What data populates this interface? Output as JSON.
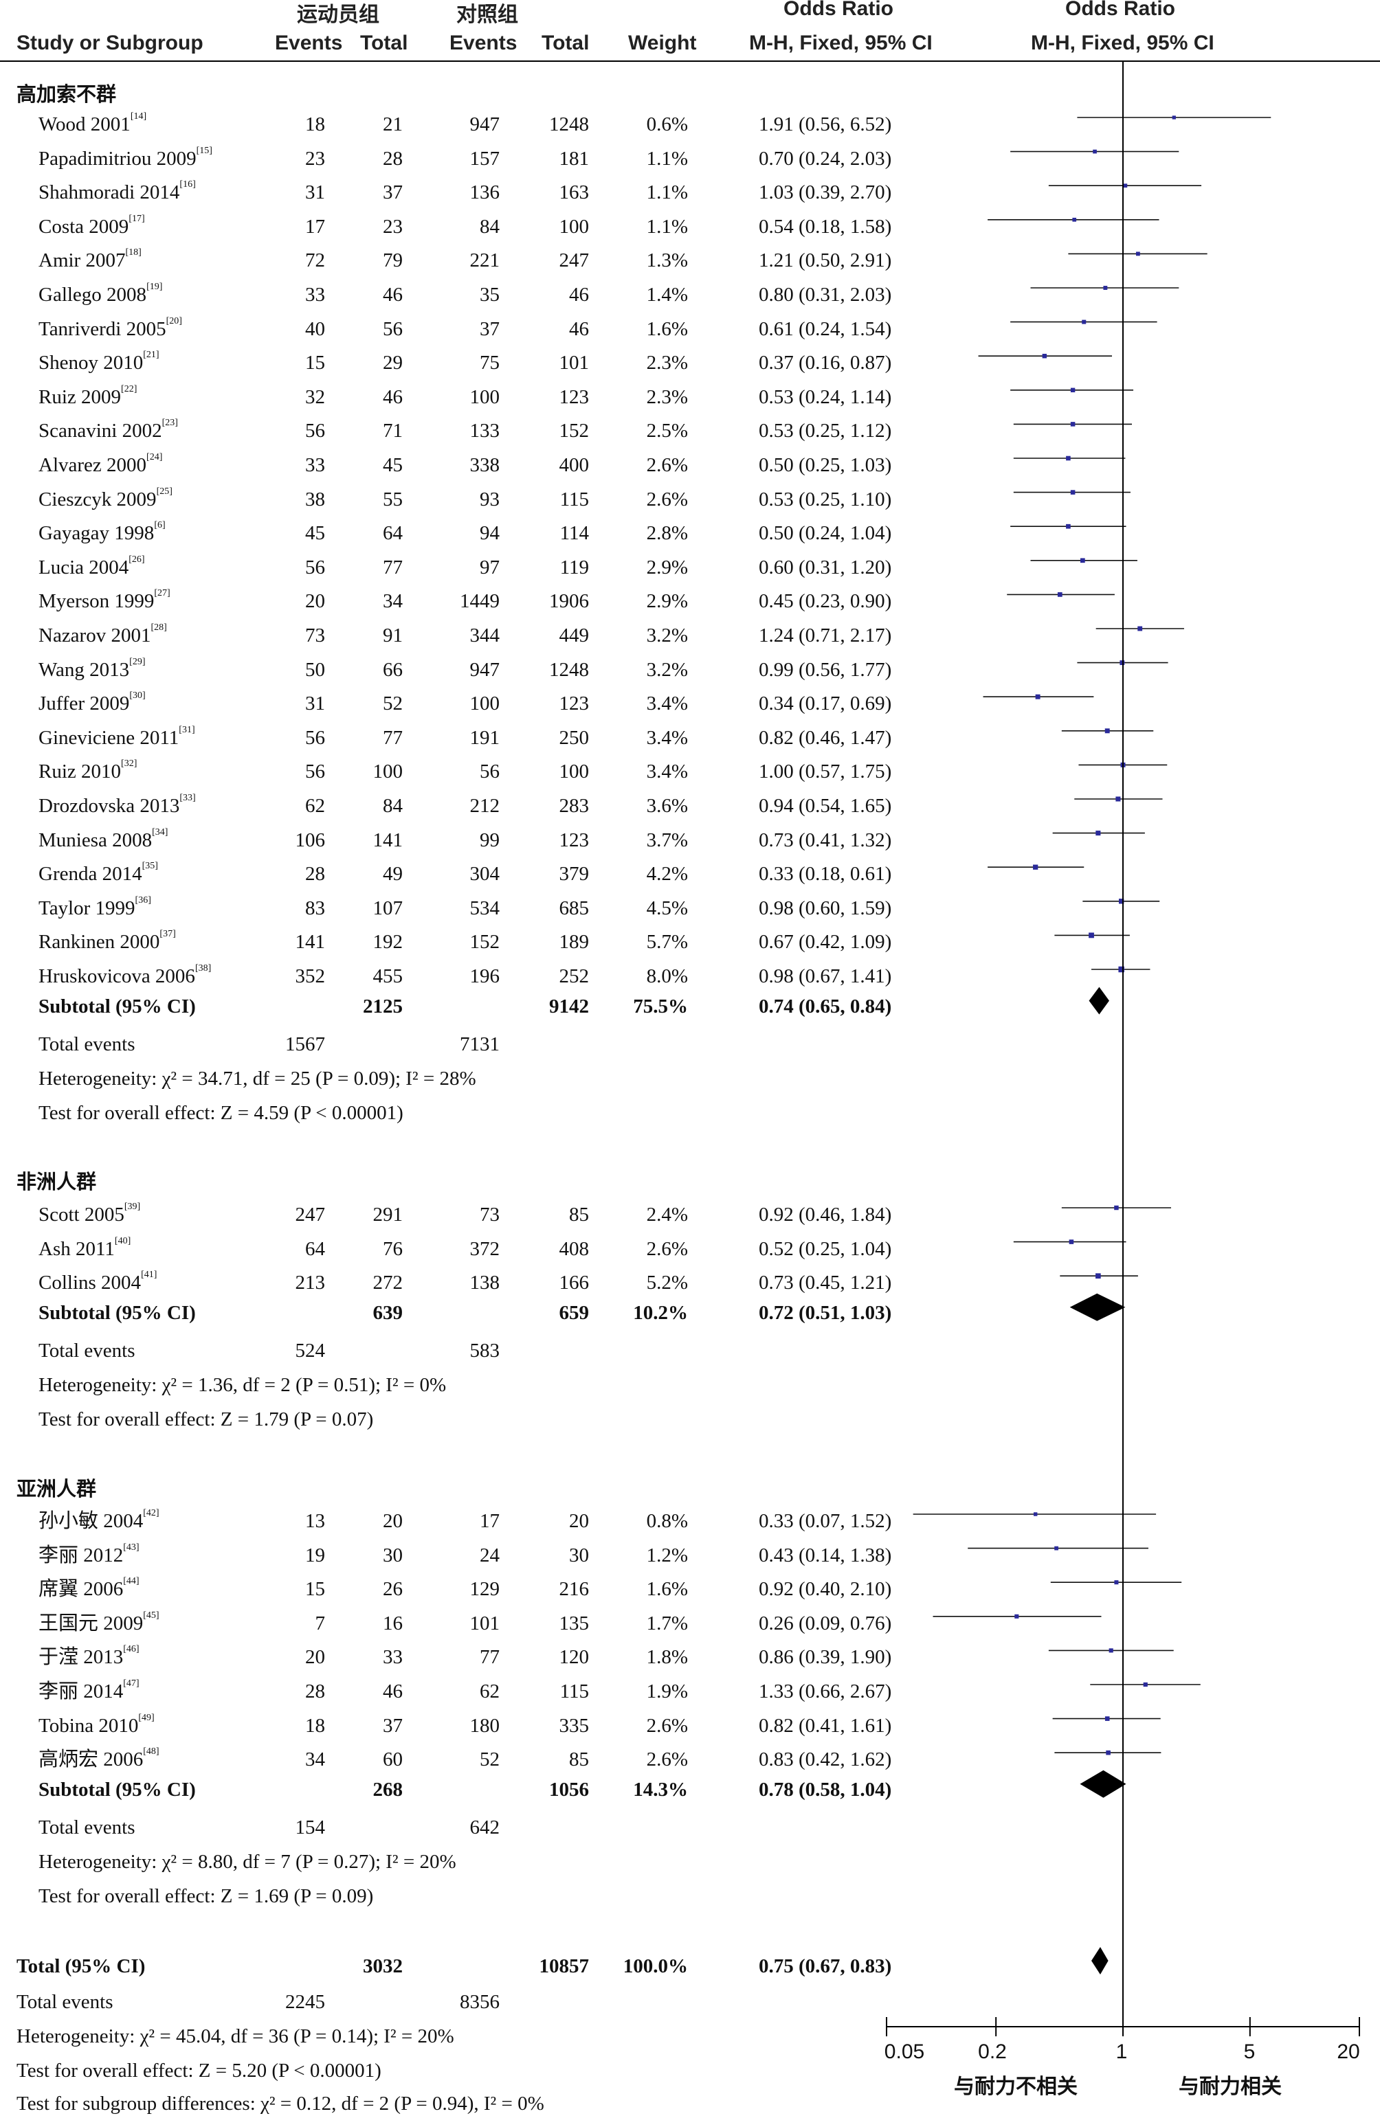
{
  "header": {
    "col_study": "Study or Subgroup",
    "group_exp": "运动员组",
    "group_ctrl": "对照组",
    "events": "Events",
    "total": "Total",
    "weight": "Weight",
    "or_label": "Odds Ratio",
    "or_method": "M-H, Fixed, 95% CI",
    "or_label_plot": "Odds Ratio",
    "or_method_plot": "M-H, Fixed, 95% CI"
  },
  "axis_labels": {
    "left": "与耐力不相关",
    "right": "与耐力相关"
  },
  "chart_data": {
    "type": "forest",
    "scale": "log",
    "xlim": [
      0.05,
      20
    ],
    "ticks": [
      "0.05",
      "0.2",
      "1",
      "5",
      "20"
    ],
    "null_value": 1,
    "subgroups": [
      {
        "name": "高加索不群",
        "studies": [
          {
            "study": "Wood 2001",
            "ref": "[14]",
            "e1": "18",
            "t1": "21",
            "e2": "947",
            "t2": "1248",
            "w": "0.6%",
            "ci": "1.91 (0.56, 6.52)",
            "or": 1.91,
            "lo": 0.56,
            "hi": 6.52
          },
          {
            "study": "Papadimitriou 2009",
            "ref": "[15]",
            "e1": "23",
            "t1": "28",
            "e2": "157",
            "t2": "181",
            "w": "1.1%",
            "ci": "0.70 (0.24, 2.03)",
            "or": 0.7,
            "lo": 0.24,
            "hi": 2.03
          },
          {
            "study": "Shahmoradi 2014",
            "ref": "[16]",
            "e1": "31",
            "t1": "37",
            "e2": "136",
            "t2": "163",
            "w": "1.1%",
            "ci": "1.03 (0.39, 2.70)",
            "or": 1.03,
            "lo": 0.39,
            "hi": 2.7
          },
          {
            "study": "Costa 2009",
            "ref": "[17]",
            "e1": "17",
            "t1": "23",
            "e2": "84",
            "t2": "100",
            "w": "1.1%",
            "ci": "0.54 (0.18, 1.58)",
            "or": 0.54,
            "lo": 0.18,
            "hi": 1.58
          },
          {
            "study": "Amir 2007",
            "ref": "[18]",
            "e1": "72",
            "t1": "79",
            "e2": "221",
            "t2": "247",
            "w": "1.3%",
            "ci": "1.21 (0.50, 2.91)",
            "or": 1.21,
            "lo": 0.5,
            "hi": 2.91
          },
          {
            "study": "Gallego 2008",
            "ref": "[19]",
            "e1": "33",
            "t1": "46",
            "e2": "35",
            "t2": "46",
            "w": "1.4%",
            "ci": "0.80 (0.31, 2.03)",
            "or": 0.8,
            "lo": 0.31,
            "hi": 2.03
          },
          {
            "study": "Tanriverdi 2005",
            "ref": "[20]",
            "e1": "40",
            "t1": "56",
            "e2": "37",
            "t2": "46",
            "w": "1.6%",
            "ci": "0.61 (0.24, 1.54)",
            "or": 0.61,
            "lo": 0.24,
            "hi": 1.54
          },
          {
            "study": "Shenoy 2010",
            "ref": "[21]",
            "e1": "15",
            "t1": "29",
            "e2": "75",
            "t2": "101",
            "w": "2.3%",
            "ci": "0.37 (0.16, 0.87)",
            "or": 0.37,
            "lo": 0.16,
            "hi": 0.87
          },
          {
            "study": "Ruiz 2009",
            "ref": "[22]",
            "e1": "32",
            "t1": "46",
            "e2": "100",
            "t2": "123",
            "w": "2.3%",
            "ci": "0.53 (0.24, 1.14)",
            "or": 0.53,
            "lo": 0.24,
            "hi": 1.14
          },
          {
            "study": "Scanavini 2002",
            "ref": "[23]",
            "e1": "56",
            "t1": "71",
            "e2": "133",
            "t2": "152",
            "w": "2.5%",
            "ci": "0.53 (0.25, 1.12)",
            "or": 0.53,
            "lo": 0.25,
            "hi": 1.12
          },
          {
            "study": "Alvarez 2000",
            "ref": "[24]",
            "e1": "33",
            "t1": "45",
            "e2": "338",
            "t2": "400",
            "w": "2.6%",
            "ci": "0.50 (0.25, 1.03)",
            "or": 0.5,
            "lo": 0.25,
            "hi": 1.03
          },
          {
            "study": "Cieszcyk 2009",
            "ref": "[25]",
            "e1": "38",
            "t1": "55",
            "e2": "93",
            "t2": "115",
            "w": "2.6%",
            "ci": "0.53 (0.25, 1.10)",
            "or": 0.53,
            "lo": 0.25,
            "hi": 1.1
          },
          {
            "study": "Gayagay 1998",
            "ref": "[6]",
            "e1": "45",
            "t1": "64",
            "e2": "94",
            "t2": "114",
            "w": "2.8%",
            "ci": "0.50 (0.24, 1.04)",
            "or": 0.5,
            "lo": 0.24,
            "hi": 1.04
          },
          {
            "study": "Lucia 2004",
            "ref": "[26]",
            "e1": "56",
            "t1": "77",
            "e2": "97",
            "t2": "119",
            "w": "2.9%",
            "ci": "0.60 (0.31, 1.20)",
            "or": 0.6,
            "lo": 0.31,
            "hi": 1.2
          },
          {
            "study": "Myerson 1999",
            "ref": "[27]",
            "e1": "20",
            "t1": "34",
            "e2": "1449",
            "t2": "1906",
            "w": "2.9%",
            "ci": "0.45 (0.23, 0.90)",
            "or": 0.45,
            "lo": 0.23,
            "hi": 0.9
          },
          {
            "study": "Nazarov 2001",
            "ref": "[28]",
            "e1": "73",
            "t1": "91",
            "e2": "344",
            "t2": "449",
            "w": "3.2%",
            "ci": "1.24 (0.71, 2.17)",
            "or": 1.24,
            "lo": 0.71,
            "hi": 2.17
          },
          {
            "study": "Wang 2013",
            "ref": "[29]",
            "e1": "50",
            "t1": "66",
            "e2": "947",
            "t2": "1248",
            "w": "3.2%",
            "ci": "0.99 (0.56, 1.77)",
            "or": 0.99,
            "lo": 0.56,
            "hi": 1.77
          },
          {
            "study": "Juffer 2009",
            "ref": "[30]",
            "e1": "31",
            "t1": "52",
            "e2": "100",
            "t2": "123",
            "w": "3.4%",
            "ci": "0.34 (0.17, 0.69)",
            "or": 0.34,
            "lo": 0.17,
            "hi": 0.69
          },
          {
            "study": "Gineviciene 2011",
            "ref": "[31]",
            "e1": "56",
            "t1": "77",
            "e2": "191",
            "t2": "250",
            "w": "3.4%",
            "ci": "0.82 (0.46, 1.47)",
            "or": 0.82,
            "lo": 0.46,
            "hi": 1.47
          },
          {
            "study": "Ruiz 2010",
            "ref": "[32]",
            "e1": "56",
            "t1": "100",
            "e2": "56",
            "t2": "100",
            "w": "3.4%",
            "ci": "1.00 (0.57, 1.75)",
            "or": 1.0,
            "lo": 0.57,
            "hi": 1.75
          },
          {
            "study": "Drozdovska 2013",
            "ref": "[33]",
            "e1": "62",
            "t1": "84",
            "e2": "212",
            "t2": "283",
            "w": "3.6%",
            "ci": "0.94 (0.54, 1.65)",
            "or": 0.94,
            "lo": 0.54,
            "hi": 1.65
          },
          {
            "study": "Muniesa 2008",
            "ref": "[34]",
            "e1": "106",
            "t1": "141",
            "e2": "99",
            "t2": "123",
            "w": "3.7%",
            "ci": "0.73 (0.41, 1.32)",
            "or": 0.73,
            "lo": 0.41,
            "hi": 1.32
          },
          {
            "study": "Grenda 2014",
            "ref": "[35]",
            "e1": "28",
            "t1": "49",
            "e2": "304",
            "t2": "379",
            "w": "4.2%",
            "ci": "0.33 (0.18, 0.61)",
            "or": 0.33,
            "lo": 0.18,
            "hi": 0.61
          },
          {
            "study": "Taylor 1999",
            "ref": "[36]",
            "e1": "83",
            "t1": "107",
            "e2": "534",
            "t2": "685",
            "w": "4.5%",
            "ci": "0.98 (0.60, 1.59)",
            "or": 0.98,
            "lo": 0.6,
            "hi": 1.59
          },
          {
            "study": "Rankinen 2000",
            "ref": "[37]",
            "e1": "141",
            "t1": "192",
            "e2": "152",
            "t2": "189",
            "w": "5.7%",
            "ci": "0.67 (0.42, 1.09)",
            "or": 0.67,
            "lo": 0.42,
            "hi": 1.09
          },
          {
            "study": "Hruskovicova 2006",
            "ref": "[38]",
            "e1": "352",
            "t1": "455",
            "e2": "196",
            "t2": "252",
            "w": "8.0%",
            "ci": "0.98 (0.67, 1.41)",
            "or": 0.98,
            "lo": 0.67,
            "hi": 1.41
          }
        ],
        "subtotal": {
          "label": "Subtotal (95% CI)",
          "t1": "2125",
          "t2": "9142",
          "w": "75.5%",
          "ci": "0.74 (0.65, 0.84)",
          "or": 0.74,
          "lo": 0.65,
          "hi": 0.84
        },
        "total_events": {
          "label": "Total events",
          "e1": "1567",
          "e2": "7131"
        },
        "heterogeneity": "Heterogeneity: χ² = 34.71, df = 25 (P = 0.09); I² = 28%",
        "overall": "Test for overall effect: Z = 4.59 (P < 0.00001)"
      },
      {
        "name": "非洲人群",
        "studies": [
          {
            "study": "Scott 2005",
            "ref": "[39]",
            "e1": "247",
            "t1": "291",
            "e2": "73",
            "t2": "85",
            "w": "2.4%",
            "ci": "0.92 (0.46, 1.84)",
            "or": 0.92,
            "lo": 0.46,
            "hi": 1.84
          },
          {
            "study": "Ash 2011",
            "ref": "[40]",
            "e1": "64",
            "t1": "76",
            "e2": "372",
            "t2": "408",
            "w": "2.6%",
            "ci": "0.52 (0.25, 1.04)",
            "or": 0.52,
            "lo": 0.25,
            "hi": 1.04
          },
          {
            "study": "Collins 2004",
            "ref": "[41]",
            "e1": "213",
            "t1": "272",
            "e2": "138",
            "t2": "166",
            "w": "5.2%",
            "ci": "0.73 (0.45, 1.21)",
            "or": 0.73,
            "lo": 0.45,
            "hi": 1.21
          }
        ],
        "subtotal": {
          "label": "Subtotal (95% CI)",
          "t1": "639",
          "t2": "659",
          "w": "10.2%",
          "ci": "0.72 (0.51, 1.03)",
          "or": 0.72,
          "lo": 0.51,
          "hi": 1.03
        },
        "total_events": {
          "label": "Total events",
          "e1": "524",
          "e2": "583"
        },
        "heterogeneity": "Heterogeneity: χ² = 1.36, df = 2 (P = 0.51); I² = 0%",
        "overall": "Test for overall effect: Z = 1.79 (P = 0.07)"
      },
      {
        "name": "亚洲人群",
        "studies": [
          {
            "study": "孙小敏 2004",
            "ref": "[42]",
            "e1": "13",
            "t1": "20",
            "e2": "17",
            "t2": "20",
            "w": "0.8%",
            "ci": "0.33 (0.07, 1.52)",
            "or": 0.33,
            "lo": 0.07,
            "hi": 1.52
          },
          {
            "study": "李丽 2012",
            "ref": "[43]",
            "e1": "19",
            "t1": "30",
            "e2": "24",
            "t2": "30",
            "w": "1.2%",
            "ci": "0.43 (0.14, 1.38)",
            "or": 0.43,
            "lo": 0.14,
            "hi": 1.38
          },
          {
            "study": "席翼 2006",
            "ref": "[44]",
            "e1": "15",
            "t1": "26",
            "e2": "129",
            "t2": "216",
            "w": "1.6%",
            "ci": "0.92 (0.40, 2.10)",
            "or": 0.92,
            "lo": 0.4,
            "hi": 2.1
          },
          {
            "study": "王国元 2009",
            "ref": "[45]",
            "e1": "7",
            "t1": "16",
            "e2": "101",
            "t2": "135",
            "w": "1.7%",
            "ci": "0.26 (0.09, 0.76)",
            "or": 0.26,
            "lo": 0.09,
            "hi": 0.76
          },
          {
            "study": "于滢 2013",
            "ref": "[46]",
            "e1": "20",
            "t1": "33",
            "e2": "77",
            "t2": "120",
            "w": "1.8%",
            "ci": "0.86 (0.39, 1.90)",
            "or": 0.86,
            "lo": 0.39,
            "hi": 1.9
          },
          {
            "study": "李丽 2014",
            "ref": "[47]",
            "e1": "28",
            "t1": "46",
            "e2": "62",
            "t2": "115",
            "w": "1.9%",
            "ci": "1.33 (0.66, 2.67)",
            "or": 1.33,
            "lo": 0.66,
            "hi": 2.67
          },
          {
            "study": "Tobina 2010",
            "ref": "[49]",
            "e1": "18",
            "t1": "37",
            "e2": "180",
            "t2": "335",
            "w": "2.6%",
            "ci": "0.82 (0.41, 1.61)",
            "or": 0.82,
            "lo": 0.41,
            "hi": 1.61
          },
          {
            "study": "高炳宏 2006",
            "ref": "[48]",
            "e1": "34",
            "t1": "60",
            "e2": "52",
            "t2": "85",
            "w": "2.6%",
            "ci": "0.83 (0.42, 1.62)",
            "or": 0.83,
            "lo": 0.42,
            "hi": 1.62
          }
        ],
        "subtotal": {
          "label": "Subtotal (95% CI)",
          "t1": "268",
          "t2": "1056",
          "w": "14.3%",
          "ci": "0.78 (0.58, 1.04)",
          "or": 0.78,
          "lo": 0.58,
          "hi": 1.04
        },
        "total_events": {
          "label": "Total events",
          "e1": "154",
          "e2": "642"
        },
        "heterogeneity": "Heterogeneity: χ² = 8.80, df = 7 (P = 0.27); I² = 20%",
        "overall": "Test for overall effect: Z = 1.69 (P = 0.09)"
      }
    ],
    "total": {
      "label": "Total (95% CI)",
      "t1": "3032",
      "t2": "10857",
      "w": "100.0%",
      "ci": "0.75 (0.67, 0.83)",
      "or": 0.75,
      "lo": 0.67,
      "hi": 0.83
    },
    "total_events": {
      "label": "Total events",
      "e1": "2245",
      "e2": "8356"
    },
    "heterogeneity": "Heterogeneity: χ² = 45.04, df = 36 (P = 0.14); I² = 20%",
    "overall": "Test for overall effect: Z = 5.20 (P < 0.00001)",
    "subgroup_diff": "Test for subgroup differences: χ² = 0.12, df = 2 (P = 0.94), I² = 0%"
  }
}
